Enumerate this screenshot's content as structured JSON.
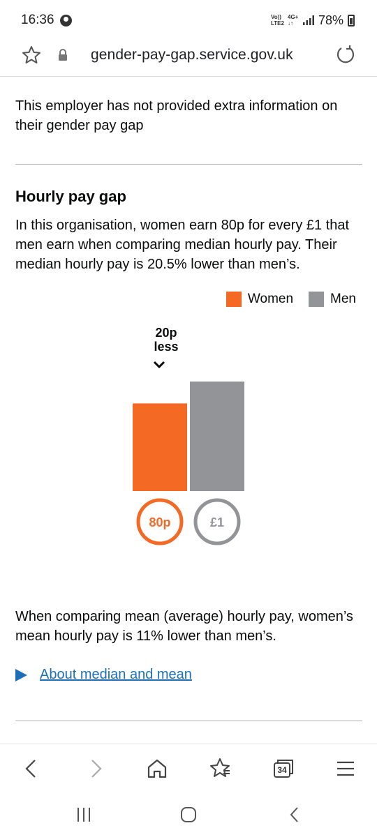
{
  "status_bar": {
    "time": "16:36",
    "network_top": "Vo))",
    "network_bottom": "LTE2",
    "data_type": "4G+",
    "data_arrows": "↓↑",
    "battery": "78%"
  },
  "address_bar": {
    "url": "gender-pay-gap.service.gov.uk"
  },
  "page": {
    "intro": "This employer has not provided extra information on their gender pay gap",
    "hourly_title": "Hourly pay gap",
    "hourly_text": "In this organisation, women earn 80p for every £1 that men earn when comparing median hourly pay. Their median hourly pay is 20.5% lower than men’s.",
    "mean_text": "When comparing mean (average) hourly pay, women’s mean hourly pay is 11% lower than men’s.",
    "details_link": "About median and mean"
  },
  "chart_data": {
    "type": "bar",
    "categories": [
      "Women",
      "Men"
    ],
    "values": [
      80,
      100
    ],
    "value_labels": [
      "80p",
      "£1"
    ],
    "colors": [
      "#f46a25",
      "#929497"
    ],
    "legend": [
      "Women",
      "Men"
    ],
    "legend_position": "top-right",
    "gap_label_line1": "20p",
    "gap_label_line2": "less",
    "ylim": [
      0,
      100
    ],
    "grid": false
  },
  "colors": {
    "link": "#1d70b8",
    "text": "#0b0c0c",
    "divider": "#b1b4b6"
  },
  "icons": {
    "favorite": "star-icon",
    "secure": "lock-icon",
    "reload": "reload-icon",
    "back": "back-icon",
    "forward": "forward-icon",
    "home": "home-icon",
    "bookmarks": "bookmarks-icon",
    "menu": "menu-icon"
  },
  "bottom_nav": {
    "tab_count": "34"
  }
}
